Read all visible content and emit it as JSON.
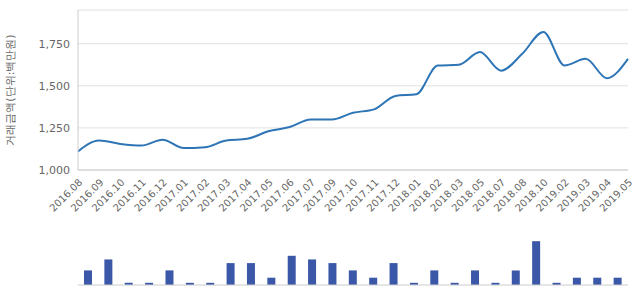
{
  "chart_data": [
    {
      "type": "line",
      "y_label": "거래금액(단위:백만원)",
      "categories": [
        "2016.08",
        "2016.09",
        "2016.10",
        "2016.11",
        "2016.12",
        "2017.01",
        "2017.02",
        "2017.03",
        "2017.04",
        "2017.05",
        "2017.06",
        "2017.07",
        "2017.09",
        "2017.10",
        "2017.11",
        "2017.12",
        "2018.01",
        "2018.02",
        "2018.03",
        "2018.05",
        "2018.07",
        "2018.08",
        "2018.10",
        "2019.02",
        "2019.03",
        "2019.04",
        "2019.05"
      ],
      "values": [
        1110,
        1175,
        1155,
        1145,
        1180,
        1130,
        1135,
        1175,
        1185,
        1230,
        1255,
        1300,
        1300,
        1340,
        1360,
        1440,
        1450,
        1620,
        1625,
        1700,
        1590,
        1690,
        1820,
        1620,
        1660,
        1545,
        1660
      ],
      "color": "#2e75b6",
      "ylim": [
        1000,
        1950
      ],
      "yticks": [
        {
          "value": 1000,
          "label": "1,000"
        },
        {
          "value": 1250,
          "label": "1,250"
        },
        {
          "value": 1500,
          "label": "1,500"
        },
        {
          "value": 1750,
          "label": "1,750"
        }
      ],
      "grid": true
    },
    {
      "type": "bar",
      "categories": [
        "2016.08",
        "2016.09",
        "2016.10",
        "2016.11",
        "2016.12",
        "2017.01",
        "2017.02",
        "2017.03",
        "2017.04",
        "2017.05",
        "2017.06",
        "2017.07",
        "2017.09",
        "2017.10",
        "2017.11",
        "2017.12",
        "2018.01",
        "2018.02",
        "2018.03",
        "2018.05",
        "2018.07",
        "2018.08",
        "2018.10",
        "2019.02",
        "2019.03",
        "2019.04",
        "2019.05"
      ],
      "values": [
        2,
        3.5,
        0.3,
        0.3,
        2,
        0.3,
        0.3,
        3,
        3,
        1,
        4,
        3.5,
        3,
        2,
        1,
        3,
        0.3,
        2,
        0.3,
        2,
        0.3,
        2,
        6,
        0.3,
        1,
        1,
        1
      ],
      "color": "#3a57a8",
      "ylim": [
        0,
        6.3
      ],
      "tick_labels": false
    }
  ]
}
